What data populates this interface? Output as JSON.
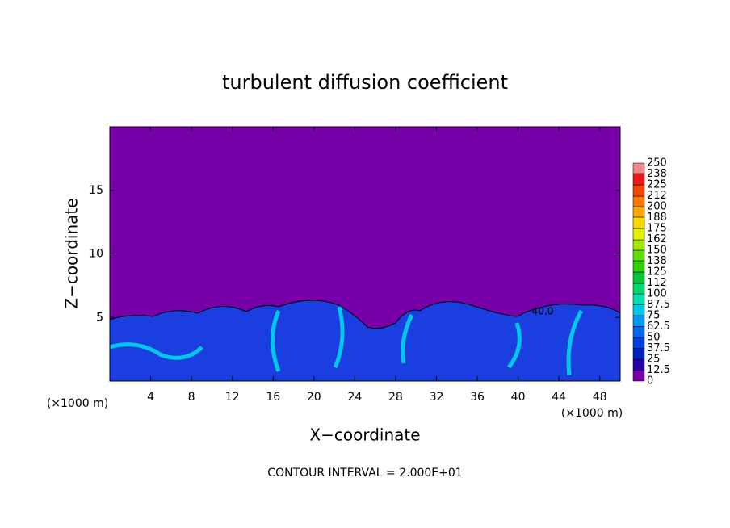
{
  "chart_data": {
    "type": "contour",
    "title": "turbulent diffusion coefficient",
    "x_label": "X−coordinate",
    "y_label": "Z−coordinate",
    "x_unit": "(×1000 m)",
    "y_unit": "(×1000 m)",
    "note": "CONTOUR INTERVAL = 2.000E+01",
    "contour_label": "40.0",
    "xlim": [
      0,
      50
    ],
    "xticks": [
      4,
      8,
      12,
      16,
      20,
      24,
      28,
      32,
      36,
      40,
      44,
      48
    ],
    "ylim": [
      0,
      20
    ],
    "yticks": [
      5,
      10,
      15
    ],
    "levels": [
      0,
      12.5,
      25,
      37.5,
      50,
      62.5,
      75,
      87.5,
      100,
      112,
      125,
      138,
      150,
      162,
      175,
      188,
      200,
      212,
      225,
      238,
      250
    ],
    "colors": [
      "#7800a8",
      "#2800a8",
      "#0020c0",
      "#0040e0",
      "#0068f0",
      "#0098f0",
      "#00c8e8",
      "#00e0b0",
      "#00d870",
      "#00c838",
      "#30d000",
      "#60e000",
      "#a0e800",
      "#e0f000",
      "#f8d800",
      "#f8a800",
      "#f87800",
      "#f04800",
      "#f01818",
      "#f08888"
    ]
  }
}
